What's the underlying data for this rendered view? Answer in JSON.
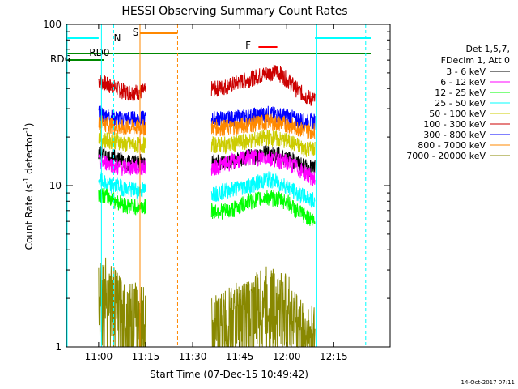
{
  "chart_data": {
    "type": "line",
    "title": "HESSI Observing Summary Count Rates",
    "xlabel": "Start Time (07-Dec-15 10:49:42)",
    "ylabel_main": "Count Rate (s",
    "ylabel_exp1": "-1",
    "ylabel_mid": " detector",
    "ylabel_exp2": "-1",
    "ylabel_end": ")",
    "yscale": "log",
    "ylim": [
      1,
      100
    ],
    "xlim": [
      "10:49:42",
      "12:33:00"
    ],
    "x_ticks": [
      "11:00",
      "11:15",
      "11:30",
      "11:45",
      "12:00",
      "12:15"
    ],
    "y_ticks": [
      "1",
      "10",
      "100"
    ],
    "footer_date": "14-Oct-2017 07:11",
    "legend": {
      "header": [
        "Det 1,5,7,",
        "FDecim 1, Att 0"
      ],
      "entries": [
        {
          "label": "3 - 6 keV",
          "color": "#000000"
        },
        {
          "label": "6 - 12 keV",
          "color": "#ff00ff"
        },
        {
          "label": "12 - 25 keV",
          "color": "#00ff00"
        },
        {
          "label": "25 - 50 keV",
          "color": "#00ffff"
        },
        {
          "label": "50 - 100 keV",
          "color": "#cccc00"
        },
        {
          "label": "100 - 300 keV",
          "color": "#cc0000"
        },
        {
          "label": "300 - 800 keV",
          "color": "#0000ff"
        },
        {
          "label": "800 - 7000 keV",
          "color": "#ff8800"
        },
        {
          "label": "7000 - 20000 keV",
          "color": "#888800"
        }
      ]
    },
    "flags": [
      {
        "label": "N",
        "color": "#00ffff"
      },
      {
        "label": "S",
        "color": "#ff8800"
      },
      {
        "label": "F",
        "color": "#ff0000"
      },
      {
        "label": "RD0",
        "color": "#008800"
      },
      {
        "label": "RD6",
        "color": "#008800"
      }
    ],
    "segments": [
      {
        "start": "11:00",
        "end": "11:15"
      },
      {
        "start": "11:36",
        "end": "12:09"
      }
    ],
    "series": [
      {
        "color": "#cc0000",
        "values": [
          [
            11.0,
            45
          ],
          [
            11.05,
            42
          ],
          [
            11.1,
            40
          ],
          [
            11.15,
            38
          ],
          [
            11.62,
            40
          ],
          [
            11.7,
            42
          ],
          [
            11.8,
            46
          ],
          [
            11.9,
            50
          ],
          [
            11.95,
            51
          ],
          [
            12.0,
            46
          ],
          [
            12.05,
            40
          ],
          [
            12.1,
            36
          ],
          [
            12.15,
            34
          ]
        ]
      },
      {
        "color": "#0000ff",
        "values": [
          [
            11.0,
            28
          ],
          [
            11.05,
            27
          ],
          [
            11.1,
            26
          ],
          [
            11.15,
            26
          ],
          [
            11.62,
            26
          ],
          [
            11.7,
            26
          ],
          [
            11.8,
            27
          ],
          [
            11.9,
            28
          ],
          [
            12.0,
            27
          ],
          [
            12.05,
            26
          ],
          [
            12.1,
            25
          ],
          [
            12.15,
            25
          ]
        ]
      },
      {
        "color": "#ff8800",
        "values": [
          [
            11.0,
            25
          ],
          [
            11.05,
            24
          ],
          [
            11.1,
            23
          ],
          [
            11.15,
            23
          ],
          [
            11.62,
            23
          ],
          [
            11.7,
            23
          ],
          [
            11.8,
            24
          ],
          [
            11.9,
            25
          ],
          [
            12.0,
            24
          ],
          [
            12.05,
            23
          ],
          [
            12.1,
            22
          ],
          [
            12.15,
            22
          ]
        ]
      },
      {
        "color": "#cccc00",
        "values": [
          [
            11.0,
            20
          ],
          [
            11.05,
            19
          ],
          [
            11.1,
            19
          ],
          [
            11.15,
            18
          ],
          [
            11.62,
            18
          ],
          [
            11.7,
            18
          ],
          [
            11.8,
            19
          ],
          [
            11.9,
            20
          ],
          [
            12.0,
            19
          ],
          [
            12.05,
            18
          ],
          [
            12.1,
            17
          ],
          [
            12.15,
            17
          ]
        ]
      },
      {
        "color": "#000000",
        "values": [
          [
            11.0,
            16
          ],
          [
            11.05,
            15
          ],
          [
            11.1,
            15
          ],
          [
            11.15,
            14
          ],
          [
            11.62,
            14
          ],
          [
            11.7,
            14
          ],
          [
            11.8,
            15
          ],
          [
            11.9,
            16
          ],
          [
            12.0,
            15
          ],
          [
            12.05,
            14
          ],
          [
            12.1,
            13
          ],
          [
            12.15,
            13
          ]
        ]
      },
      {
        "color": "#ff00ff",
        "values": [
          [
            11.0,
            14
          ],
          [
            11.05,
            14
          ],
          [
            11.1,
            13
          ],
          [
            11.15,
            13
          ],
          [
            11.62,
            13
          ],
          [
            11.7,
            14
          ],
          [
            11.8,
            15
          ],
          [
            11.9,
            15
          ],
          [
            12.0,
            14
          ],
          [
            12.05,
            13
          ],
          [
            12.1,
            12
          ],
          [
            12.15,
            11
          ]
        ]
      },
      {
        "color": "#00ffff",
        "values": [
          [
            11.0,
            11
          ],
          [
            11.05,
            10
          ],
          [
            11.1,
            10
          ],
          [
            11.15,
            9.5
          ],
          [
            11.62,
            9
          ],
          [
            11.7,
            9.5
          ],
          [
            11.8,
            10
          ],
          [
            11.9,
            11
          ],
          [
            12.0,
            10
          ],
          [
            12.05,
            9
          ],
          [
            12.1,
            8.5
          ],
          [
            12.15,
            8
          ]
        ]
      },
      {
        "color": "#00ff00",
        "values": [
          [
            11.0,
            9
          ],
          [
            11.05,
            8.5
          ],
          [
            11.1,
            8
          ],
          [
            11.15,
            7.5
          ],
          [
            11.62,
            7
          ],
          [
            11.7,
            7
          ],
          [
            11.8,
            8
          ],
          [
            11.9,
            8.5
          ],
          [
            12.0,
            8
          ],
          [
            12.05,
            7
          ],
          [
            12.1,
            6.5
          ],
          [
            12.15,
            6
          ]
        ]
      },
      {
        "color": "#888800",
        "values": [
          [
            11.0,
            2.4
          ],
          [
            11.05,
            2.2
          ],
          [
            11.1,
            1.8
          ],
          [
            11.15,
            1.6
          ],
          [
            11.62,
            1.3
          ],
          [
            11.7,
            1.5
          ],
          [
            11.8,
            1.7
          ],
          [
            11.9,
            2.0
          ],
          [
            12.0,
            1.8
          ],
          [
            12.05,
            1.4
          ],
          [
            12.1,
            1.2
          ],
          [
            12.15,
            1.1
          ]
        ]
      }
    ]
  }
}
